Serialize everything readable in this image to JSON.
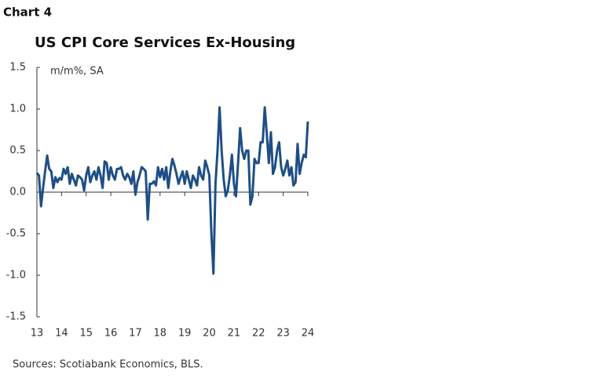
{
  "chart_data": {
    "type": "line",
    "label": "Chart 4",
    "title": "US CPI Core Services Ex-Housing",
    "y_label": "m/m%, SA",
    "source": "Sources: Scotiabank Economics, BLS.",
    "categories": [
      "13",
      null,
      null,
      null,
      null,
      null,
      null,
      null,
      null,
      null,
      null,
      null,
      "14",
      null,
      null,
      null,
      null,
      null,
      null,
      null,
      null,
      null,
      null,
      null,
      "15",
      null,
      null,
      null,
      null,
      null,
      null,
      null,
      null,
      null,
      null,
      null,
      "16",
      null,
      null,
      null,
      null,
      null,
      null,
      null,
      null,
      null,
      null,
      null,
      "17",
      null,
      null,
      null,
      null,
      null,
      null,
      null,
      null,
      null,
      null,
      null,
      "18",
      null,
      null,
      null,
      null,
      null,
      null,
      null,
      null,
      null,
      null,
      null,
      "19",
      null,
      null,
      null,
      null,
      null,
      null,
      null,
      null,
      null,
      null,
      null,
      "20",
      null,
      null,
      null,
      null,
      null,
      null,
      null,
      null,
      null,
      null,
      null,
      "21",
      null,
      null,
      null,
      null,
      null,
      null,
      null,
      null,
      null,
      null,
      null,
      "22",
      null,
      null,
      null,
      null,
      null,
      null,
      null,
      null,
      null,
      null,
      null,
      "23",
      null,
      null,
      null,
      null,
      null,
      null,
      null,
      null,
      null,
      null,
      null,
      "24"
    ],
    "series": [
      {
        "name": "US CPI Core Services Ex-Housing",
        "color": "#1f4e86",
        "values": [
          0.23,
          0.2,
          -0.17,
          0.05,
          0.25,
          0.44,
          0.28,
          0.25,
          0.05,
          0.18,
          0.12,
          0.17,
          0.15,
          0.28,
          0.22,
          0.3,
          0.1,
          0.22,
          0.15,
          0.08,
          0.2,
          0.18,
          0.15,
          0.02,
          0.2,
          0.3,
          0.12,
          0.2,
          0.25,
          0.15,
          0.3,
          0.2,
          0.05,
          0.37,
          0.35,
          0.15,
          0.3,
          0.2,
          0.15,
          0.28,
          0.28,
          0.3,
          0.2,
          0.15,
          0.22,
          0.18,
          0.1,
          0.25,
          -0.03,
          0.12,
          0.2,
          0.3,
          0.28,
          0.25,
          -0.33,
          0.1,
          0.1,
          0.13,
          0.08,
          0.3,
          0.18,
          0.28,
          0.15,
          0.3,
          0.05,
          0.25,
          0.4,
          0.32,
          0.22,
          0.1,
          0.18,
          0.25,
          0.1,
          0.25,
          0.15,
          0.05,
          0.2,
          0.15,
          0.08,
          0.3,
          0.2,
          0.15,
          0.38,
          0.3,
          0.2,
          -0.5,
          -0.98,
          0.1,
          0.5,
          1.02,
          0.5,
          0.15,
          -0.05,
          0.02,
          0.2,
          0.45,
          0.1,
          -0.05,
          0.35,
          0.77,
          0.5,
          0.4,
          0.5,
          0.5,
          -0.15,
          -0.05,
          0.4,
          0.35,
          0.35,
          0.6,
          0.6,
          1.02,
          0.7,
          0.35,
          0.72,
          0.22,
          0.3,
          0.5,
          0.6,
          0.3,
          0.2,
          0.28,
          0.38,
          0.2,
          0.3,
          0.08,
          0.12,
          0.58,
          0.22,
          0.35,
          0.45,
          0.42,
          0.85
        ]
      }
    ],
    "ylim": [
      -1.5,
      1.5
    ],
    "yticks": [
      1.5,
      {
        "value": 1,
        "label": "1.0"
      },
      0.5,
      {
        "value": 0,
        "label": "0.0"
      },
      -0.5,
      {
        "value": -1,
        "label": "-1.0"
      },
      -1.5
    ]
  }
}
